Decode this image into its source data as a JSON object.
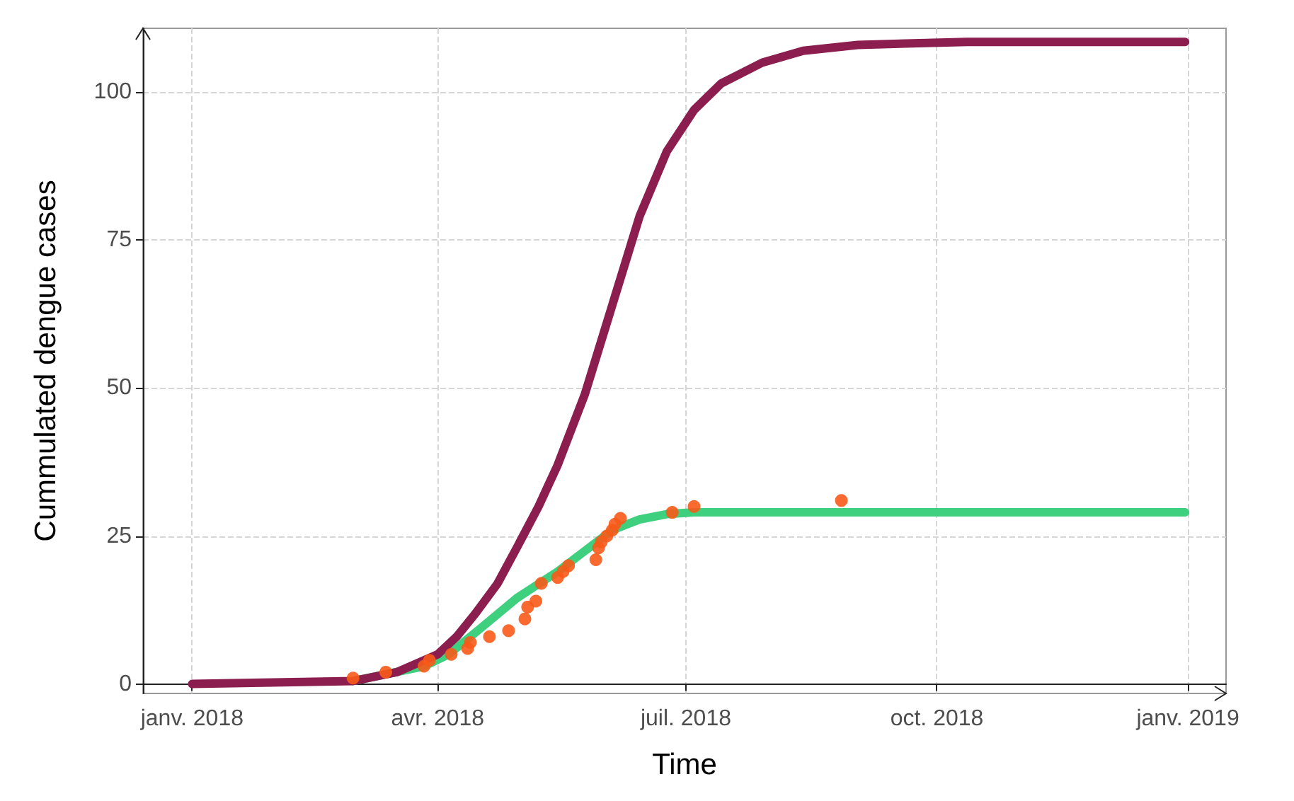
{
  "chart_data": {
    "type": "line",
    "xlabel": "Time",
    "ylabel": "Cummulated dengue cases",
    "xlim": [
      "2017-12-14",
      "2019-01-15"
    ],
    "ylim": [
      -1.6,
      110.8
    ],
    "xticks": [
      {
        "value": "2018-01-01",
        "label": "janv. 2018"
      },
      {
        "value": "2018-04-01",
        "label": "avr. 2018"
      },
      {
        "value": "2018-07-01",
        "label": "juil. 2018"
      },
      {
        "value": "2018-10-01",
        "label": "oct. 2018"
      },
      {
        "value": "2019-01-01",
        "label": "janv. 2019"
      }
    ],
    "yticks": [
      0,
      25,
      50,
      75,
      100
    ],
    "grid": true,
    "series": [
      {
        "color": "#3ecf7f",
        "line_style": "solid",
        "marker": "none",
        "x": [
          "2018-03-01",
          "2018-03-27",
          "2018-04-05",
          "2018-04-17",
          "2018-04-30",
          "2018-05-15",
          "2018-05-25",
          "2018-06-04",
          "2018-06-14",
          "2018-06-24",
          "2018-07-04",
          "2018-12-31"
        ],
        "values": [
          0.5,
          3,
          5,
          9.5,
          14.5,
          19,
          22.5,
          26,
          27.8,
          28.7,
          29,
          29
        ]
      },
      {
        "color": "#8b1e4f",
        "line_style": "solid",
        "marker": "none",
        "x": [
          "2018-01-01",
          "2018-03-01",
          "2018-03-17",
          "2018-04-01",
          "2018-04-08",
          "2018-04-15",
          "2018-04-23",
          "2018-04-30",
          "2018-05-08",
          "2018-05-15",
          "2018-05-25",
          "2018-06-04",
          "2018-06-14",
          "2018-06-24",
          "2018-07-04",
          "2018-07-14",
          "2018-07-29",
          "2018-08-13",
          "2018-09-02",
          "2018-10-12",
          "2018-12-31"
        ],
        "values": [
          0,
          0.5,
          2,
          5,
          8,
          12,
          17,
          23,
          30,
          37,
          49,
          64,
          79,
          90,
          97,
          101.5,
          105,
          107,
          108,
          108.5,
          108.5
        ]
      },
      {
        "type": "scatter",
        "color": "#f75a18",
        "marker": "circle",
        "x": [
          "2018-03-01",
          "2018-03-13",
          "2018-03-27",
          "2018-03-29",
          "2018-04-06",
          "2018-04-12",
          "2018-04-13",
          "2018-04-20",
          "2018-04-27",
          "2018-05-03",
          "2018-05-04",
          "2018-05-07",
          "2018-05-09",
          "2018-05-15",
          "2018-05-17",
          "2018-05-19",
          "2018-05-29",
          "2018-05-30",
          "2018-05-31",
          "2018-06-02",
          "2018-06-04",
          "2018-06-05",
          "2018-06-07",
          "2018-06-26",
          "2018-07-04",
          "2018-08-27"
        ],
        "values": [
          1,
          2,
          3,
          4,
          5,
          6,
          7,
          8,
          9,
          11,
          13,
          14,
          17,
          18,
          19,
          20,
          21,
          23,
          24,
          25,
          26,
          27,
          28,
          29,
          30,
          31
        ]
      }
    ]
  }
}
